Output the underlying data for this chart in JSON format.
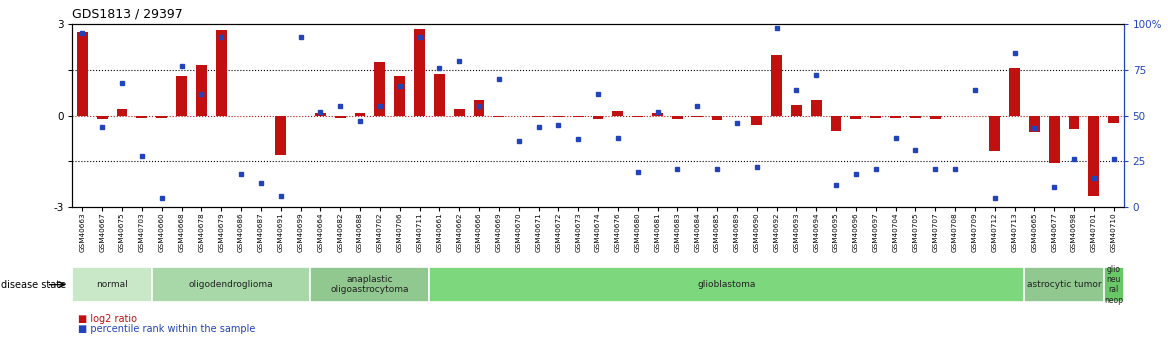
{
  "title": "GDS1813 / 29397",
  "samples": [
    "GSM40663",
    "GSM40667",
    "GSM40675",
    "GSM40703",
    "GSM40660",
    "GSM40668",
    "GSM40678",
    "GSM40679",
    "GSM40686",
    "GSM40687",
    "GSM40691",
    "GSM40699",
    "GSM40664",
    "GSM40682",
    "GSM40688",
    "GSM40702",
    "GSM40706",
    "GSM40711",
    "GSM40661",
    "GSM40662",
    "GSM40666",
    "GSM40669",
    "GSM40670",
    "GSM40671",
    "GSM40672",
    "GSM40673",
    "GSM40674",
    "GSM40676",
    "GSM40680",
    "GSM40681",
    "GSM40683",
    "GSM40684",
    "GSM40685",
    "GSM40689",
    "GSM40690",
    "GSM40692",
    "GSM40693",
    "GSM40694",
    "GSM40695",
    "GSM40696",
    "GSM40697",
    "GSM40704",
    "GSM40705",
    "GSM40707",
    "GSM40708",
    "GSM40709",
    "GSM40712",
    "GSM40713",
    "GSM40665",
    "GSM40677",
    "GSM40698",
    "GSM40701",
    "GSM40710"
  ],
  "log2_ratio": [
    2.75,
    -0.12,
    0.22,
    -0.08,
    -0.08,
    1.3,
    1.65,
    2.8,
    0.0,
    0.0,
    -1.3,
    0.0,
    0.1,
    -0.08,
    0.1,
    1.75,
    1.3,
    2.85,
    1.35,
    0.2,
    0.5,
    -0.05,
    0.0,
    -0.05,
    -0.05,
    -0.05,
    -0.1,
    0.15,
    -0.05,
    0.08,
    -0.12,
    -0.05,
    -0.15,
    0.0,
    -0.3,
    2.0,
    0.35,
    0.5,
    -0.5,
    -0.1,
    -0.08,
    -0.08,
    -0.08,
    -0.12,
    0.0,
    0.0,
    -1.15,
    1.55,
    -0.55,
    -1.55,
    -0.45,
    -2.65,
    -0.25
  ],
  "percentile": [
    95,
    44,
    68,
    28,
    5,
    77,
    62,
    93,
    18,
    13,
    6,
    93,
    52,
    55,
    47,
    55,
    66,
    93,
    76,
    80,
    55,
    70,
    36,
    44,
    45,
    37,
    62,
    38,
    19,
    52,
    21,
    55,
    21,
    46,
    22,
    98,
    64,
    72,
    12,
    18,
    21,
    38,
    31,
    21,
    21,
    64,
    5,
    84,
    43,
    11,
    26,
    16,
    26
  ],
  "disease_groups": [
    {
      "label": "normal",
      "start": 0,
      "end": 4,
      "color": "#c8e8c8"
    },
    {
      "label": "oligodendroglioma",
      "start": 4,
      "end": 12,
      "color": "#a8d8a8"
    },
    {
      "label": "anaplastic\noligoastrocytoma",
      "start": 12,
      "end": 18,
      "color": "#90c890"
    },
    {
      "label": "glioblastoma",
      "start": 18,
      "end": 48,
      "color": "#7dd87d"
    },
    {
      "label": "astrocytic tumor",
      "start": 48,
      "end": 52,
      "color": "#90c890"
    },
    {
      "label": "glio\nneu\nral\nneop",
      "start": 52,
      "end": 53,
      "color": "#68c868"
    }
  ],
  "bar_color": "#c01010",
  "dot_color": "#2244bb",
  "ymin": -3,
  "ymax": 3,
  "dotted_lines": [
    1.5,
    -1.5
  ],
  "background_color": "#ffffff",
  "plot_bg": "#ffffff"
}
